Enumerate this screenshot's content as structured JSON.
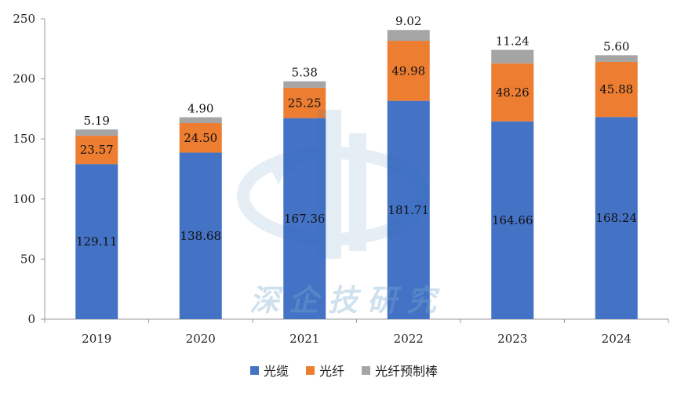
{
  "chart_data": {
    "type": "bar",
    "stacked": true,
    "categories": [
      "2019",
      "2020",
      "2021",
      "2022",
      "2023",
      "2024"
    ],
    "series": [
      {
        "name": "光缆",
        "values": [
          129.11,
          138.68,
          167.36,
          181.71,
          164.66,
          168.24
        ],
        "color": "#4472c4"
      },
      {
        "name": "光纤",
        "values": [
          23.57,
          24.5,
          25.25,
          49.98,
          48.26,
          45.88
        ],
        "color": "#ed7d31"
      },
      {
        "name": "光纤预制棒",
        "values": [
          5.19,
          4.9,
          5.38,
          9.02,
          11.24,
          5.6
        ],
        "color": "#a5a5a5"
      }
    ],
    "value_labels": [
      [
        "129.11",
        "138.68",
        "167.36",
        "181.71",
        "164.66",
        "168.24"
      ],
      [
        "23.57",
        "24.50",
        "25.25",
        "49.98",
        "48.26",
        "45.88"
      ],
      [
        "5.19",
        "4.90",
        "5.38",
        "9.02",
        "11.24",
        "5.60"
      ]
    ],
    "ylim": [
      0,
      250
    ],
    "yticks": [
      "0",
      "50",
      "100",
      "150",
      "200",
      "250"
    ],
    "grid": false,
    "legend_position": "bottom"
  },
  "watermark": {
    "text": "深企技研究"
  }
}
